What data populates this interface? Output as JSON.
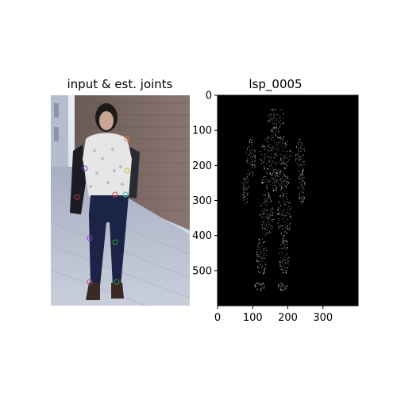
{
  "figure": {
    "left_title": "input & est. joints",
    "right_title": "lsp_0005"
  },
  "chart_data": [
    {
      "type": "image",
      "title": "input & est. joints",
      "description_content": "photo of a woman with estimated joint markers",
      "axes_visible": false,
      "joints": [
        {
          "x": 145,
          "y": 245,
          "color": "#d43a2a"
        },
        {
          "x": 113,
          "y": 300,
          "color": "#8a3ad4"
        },
        {
          "x": 145,
          "y": 305,
          "color": "#3aa040"
        },
        {
          "x": 113,
          "y": 355,
          "color": "#c04080"
        },
        {
          "x": 147,
          "y": 355,
          "color": "#3aa040"
        },
        {
          "x": 107,
          "y": 212,
          "color": "#8a3ad4"
        },
        {
          "x": 160,
          "y": 215,
          "color": "#c0c040"
        },
        {
          "x": 160,
          "y": 175,
          "color": "#e08040"
        },
        {
          "x": 158,
          "y": 245,
          "color": "#40c0a0"
        },
        {
          "x": 97,
          "y": 248,
          "color": "#c04040"
        }
      ]
    },
    {
      "type": "image",
      "title": "lsp_0005",
      "background": "#000000",
      "xlim": [
        0,
        400
      ],
      "ylim": [
        600,
        0
      ],
      "x_ticks": [
        0,
        100,
        200,
        300
      ],
      "y_ticks": [
        0,
        100,
        200,
        300,
        400,
        500
      ],
      "grid": false,
      "description_content": "white point-cloud mesh of a standing human figure"
    }
  ]
}
